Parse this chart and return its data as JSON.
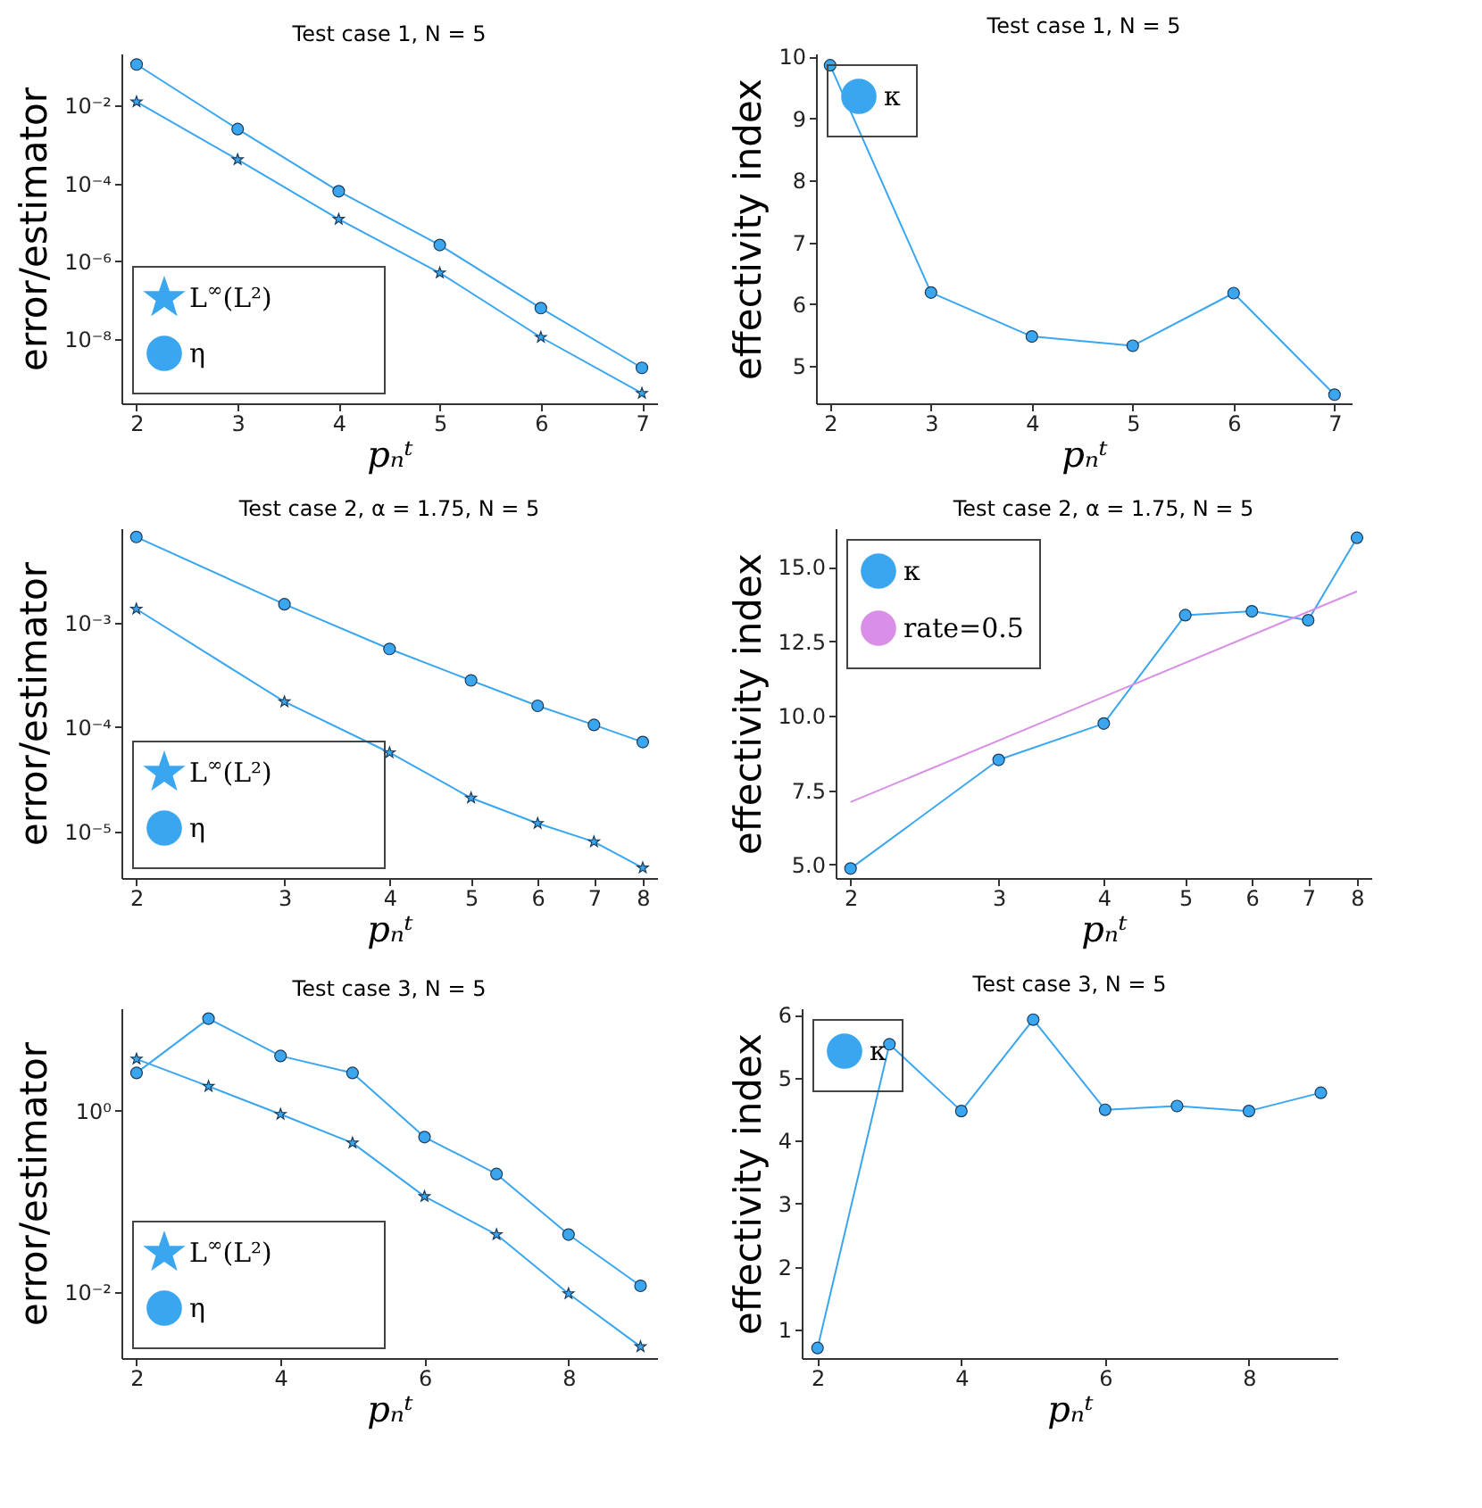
{
  "chart_data": [
    {
      "type": "line",
      "title": "Test case 1, N = 5",
      "xlabel": "pₙᵗ",
      "ylabel": "error/estimator",
      "log": "y",
      "legend": "bottom left",
      "xlim": [
        1.85,
        7.15
      ],
      "xticks": [
        2,
        3,
        4,
        5,
        6,
        7
      ],
      "ylim": [
        2.2e-10,
        0.22
      ],
      "yticks": [
        {
          "value": 0.01,
          "label": "10⁻²"
        },
        {
          "value": 0.0001,
          "label": "10⁻⁴"
        },
        {
          "value": 1e-06,
          "label": "10⁻⁶"
        },
        {
          "value": 1e-08,
          "label": "10⁻⁸"
        }
      ],
      "x": [
        2,
        3,
        4,
        5,
        6,
        7
      ],
      "series": [
        {
          "name": "L$^{∞}$(L²)",
          "color": "#3aa6f0",
          "marker": "star",
          "values": [
            0.0126,
            0.00041,
            1.2e-05,
            5e-07,
            1.1e-08,
            4e-10
          ]
        },
        {
          "name": "η",
          "color": "#3aa6f0",
          "marker": "circle",
          "values": [
            0.115,
            0.0025,
            6.3e-05,
            2.6e-06,
            6.2e-08,
            1.8e-09
          ]
        }
      ]
    },
    {
      "type": "line",
      "title": "Test case 1, N = 5",
      "xlabel": "pₙᵗ",
      "ylabel": "effectivity index",
      "legend": "top left",
      "xlim": [
        1.86,
        7.17
      ],
      "xticks": [
        2,
        3,
        4,
        5,
        6,
        7
      ],
      "ylim": [
        4.4,
        10.05
      ],
      "yticks": [
        5,
        6,
        7,
        8,
        9,
        10
      ],
      "x": [
        2,
        3,
        4,
        5,
        6,
        7
      ],
      "series": [
        {
          "name": "κ",
          "color": "#3aa6f0",
          "marker": "circle",
          "values": [
            9.86,
            6.19,
            5.48,
            5.33,
            6.18,
            4.54
          ]
        }
      ]
    },
    {
      "type": "line",
      "title": "Test case 2, α = 1.75, N = 5",
      "xlabel": "pₙᵗ",
      "ylabel": "error/estimator",
      "log": "xy",
      "legend": "bottom left",
      "xlim": [
        1.92,
        8.32
      ],
      "xticks": [
        2,
        3,
        4,
        5,
        6,
        7,
        8
      ],
      "ylim": [
        3.6e-06,
        0.008
      ],
      "yticks": [
        {
          "value": 0.001,
          "label": "10⁻³"
        },
        {
          "value": 0.0001,
          "label": "10⁻⁴"
        },
        {
          "value": 1e-05,
          "label": "10⁻⁵"
        }
      ],
      "x": [
        2,
        3,
        4,
        5,
        6,
        7,
        8
      ],
      "series": [
        {
          "name": "L$^{∞}$(L²)",
          "color": "#3aa6f0",
          "marker": "star",
          "values": [
            0.00135,
            0.000175,
            5.7e-05,
            2.1e-05,
            1.2e-05,
            8e-06,
            4.5e-06
          ]
        },
        {
          "name": "η",
          "color": "#3aa6f0",
          "marker": "circle",
          "values": [
            0.0066,
            0.0015,
            0.00056,
            0.00028,
            0.00016,
            0.000105,
            7.2e-05
          ]
        }
      ]
    },
    {
      "type": "line",
      "title": "Test case 2, α = 1.75, N = 5",
      "xlabel": "pₙᵗ",
      "ylabel": "effectivity index",
      "log": "x",
      "legend": "top left",
      "xlim": [
        1.92,
        8.32
      ],
      "xticks": [
        2,
        3,
        4,
        5,
        6,
        7,
        8
      ],
      "ylim": [
        4.55,
        16.3
      ],
      "yticks": [
        {
          "value": 5,
          "label": "5.0"
        },
        7.5,
        {
          "value": 10,
          "label": "10.0"
        },
        12.5,
        {
          "value": 15,
          "label": "15.0"
        }
      ],
      "x": [
        2,
        3,
        4,
        5,
        6,
        7,
        8
      ],
      "series": [
        {
          "name": "κ",
          "color": "#3aa6f0",
          "marker": "circle",
          "values": [
            4.87,
            8.52,
            9.74,
            13.38,
            13.51,
            13.21,
            15.98
          ]
        },
        {
          "name": "rate=0.5",
          "color": "#d98ee8",
          "marker": "none",
          "x": [
            2,
            8
          ],
          "values": [
            7.1,
            14.18
          ]
        }
      ]
    },
    {
      "type": "line",
      "title": "Test case 3, N = 5",
      "xlabel": "pₙᵗ",
      "ylabel": "error/estimator",
      "log": "y",
      "legend": "bottom left",
      "xlim": [
        1.79,
        9.23
      ],
      "xticks": [
        2,
        4,
        6,
        8
      ],
      "ylim": [
        0.00187,
        13.4
      ],
      "yticks": [
        {
          "value": 1,
          "label": "10⁰"
        },
        {
          "value": 0.01,
          "label": "10⁻²"
        }
      ],
      "x": [
        2,
        3,
        4,
        5,
        6,
        7,
        8,
        9
      ],
      "series": [
        {
          "name": "L$^{∞}$(L²)",
          "color": "#3aa6f0",
          "marker": "star",
          "values": [
            3.7,
            1.85,
            0.91,
            0.44,
            0.113,
            0.043,
            0.0096,
            0.0025
          ]
        },
        {
          "name": "η",
          "color": "#3aa6f0",
          "marker": "circle",
          "values": [
            2.6,
            10.3,
            4.0,
            2.6,
            0.51,
            0.2,
            0.043,
            0.0117
          ]
        }
      ]
    },
    {
      "type": "line",
      "title": "Test case 3, N = 5",
      "xlabel": "pₙᵗ",
      "ylabel": "effectivity index",
      "legend": "top left",
      "xlim": [
        1.78,
        9.23
      ],
      "xticks": [
        2,
        4,
        6,
        8
      ],
      "ylim": [
        0.55,
        6.1
      ],
      "yticks": [
        1,
        2,
        3,
        4,
        5,
        6
      ],
      "x": [
        2,
        3,
        4,
        5,
        6,
        7,
        8,
        9
      ],
      "series": [
        {
          "name": "κ",
          "color": "#3aa6f0",
          "marker": "circle",
          "values": [
            0.71,
            5.53,
            4.47,
            5.92,
            4.49,
            4.55,
            4.47,
            4.76
          ]
        }
      ]
    }
  ]
}
